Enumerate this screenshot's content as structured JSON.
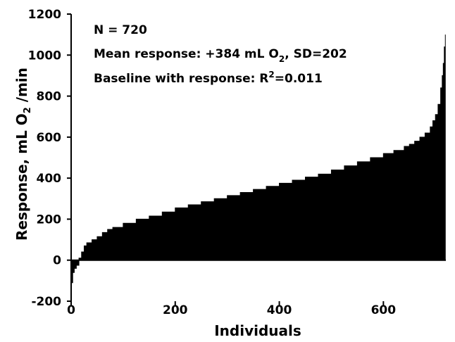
{
  "chart_data": {
    "type": "area",
    "xlabel": "Individuals",
    "ylabel_parts": [
      "Response, mL O",
      "2",
      " /min"
    ],
    "xlim": [
      0,
      720
    ],
    "ylim": [
      -200,
      1200
    ],
    "xticks": [
      0,
      200,
      400,
      600
    ],
    "yticks": [
      -200,
      0,
      200,
      400,
      600,
      800,
      1000,
      1200
    ],
    "grid": false,
    "annotations": [
      {
        "parts": [
          "N = 720"
        ]
      },
      {
        "parts": [
          "Mean response: +384 mL O",
          "2",
          ", SD=202"
        ]
      },
      {
        "parts": [
          "Baseline with response: R",
          "2",
          "=0.011"
        ]
      }
    ],
    "series": [
      {
        "x": [
          0,
          3,
          6,
          10,
          15,
          20,
          25,
          30,
          40,
          50,
          60,
          70,
          80,
          100,
          125,
          150,
          175,
          200,
          225,
          250,
          275,
          300,
          325,
          350,
          375,
          400,
          425,
          450,
          475,
          500,
          525,
          550,
          575,
          600,
          620,
          640,
          650,
          660,
          670,
          680,
          690,
          695,
          700,
          705,
          710,
          713,
          715,
          717,
          719
        ],
        "y": [
          -110,
          -60,
          -40,
          -25,
          10,
          40,
          70,
          85,
          100,
          115,
          135,
          150,
          160,
          180,
          200,
          215,
          235,
          255,
          270,
          285,
          300,
          315,
          330,
          345,
          360,
          375,
          390,
          405,
          420,
          440,
          460,
          480,
          500,
          520,
          535,
          555,
          565,
          580,
          600,
          620,
          650,
          680,
          710,
          760,
          840,
          900,
          960,
          1040,
          1100
        ]
      }
    ]
  }
}
